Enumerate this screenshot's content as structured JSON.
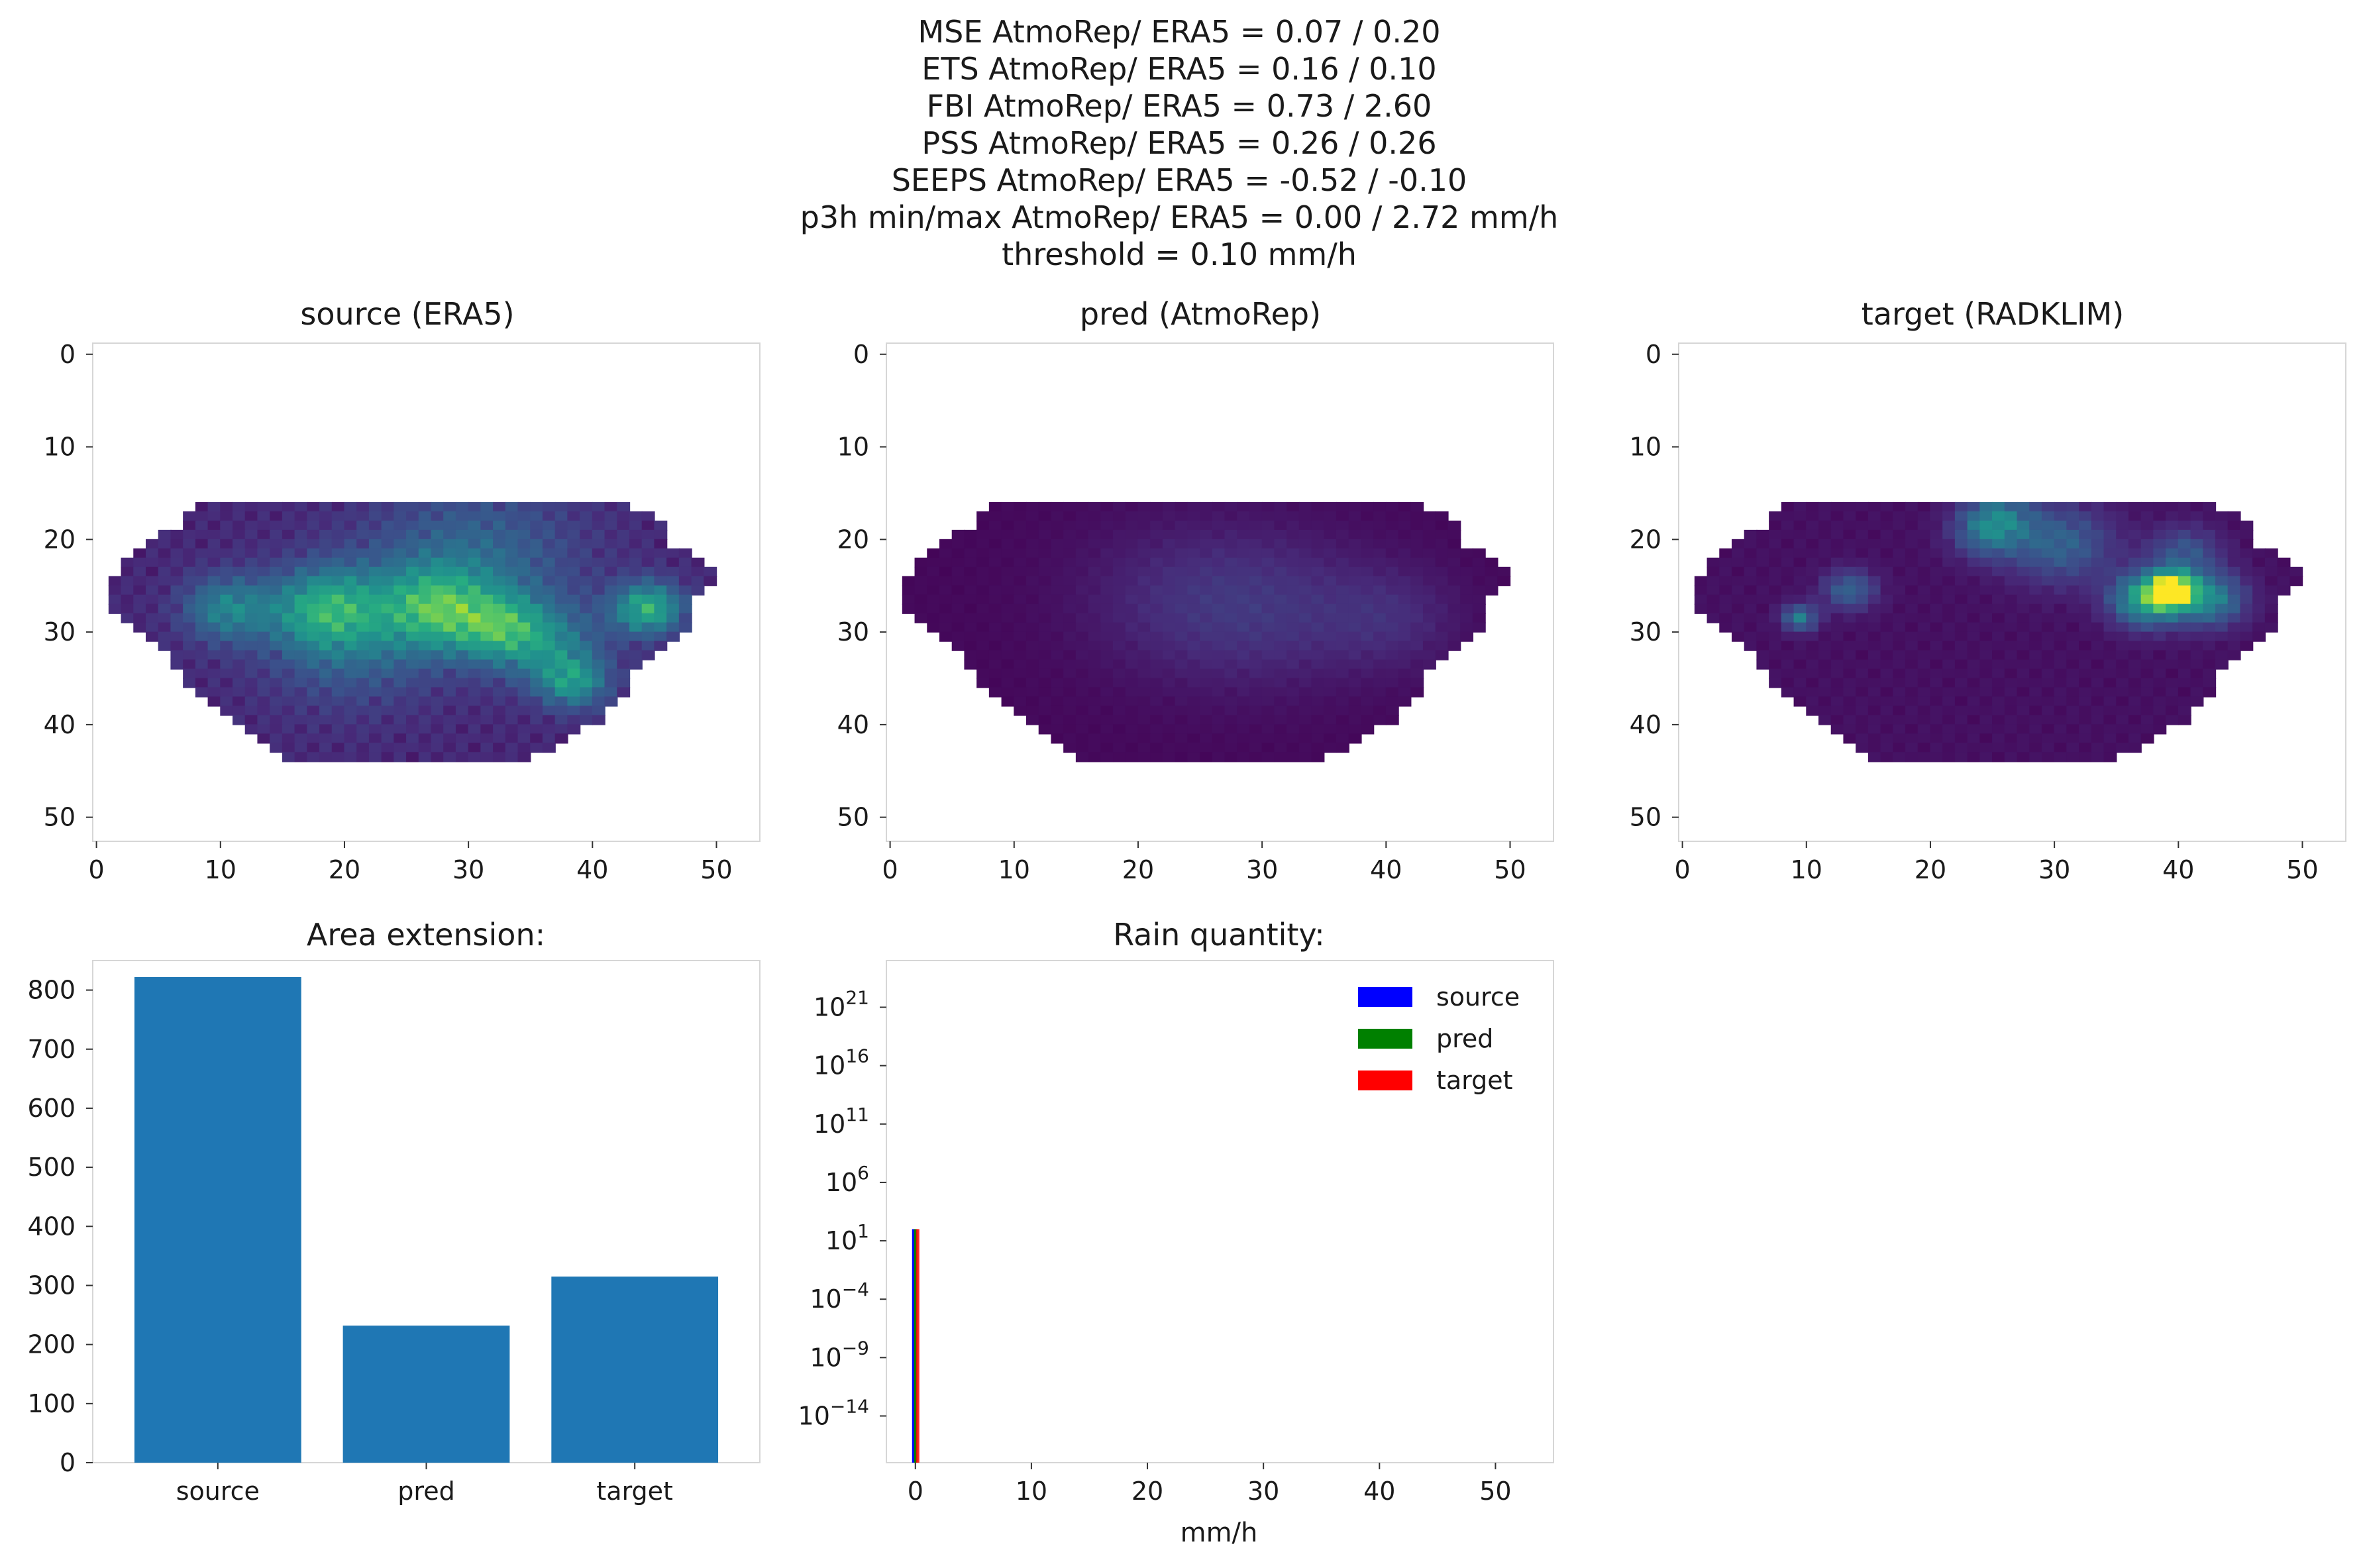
{
  "suptitle": [
    "MSE AtmoRep/ ERA5 = 0.07 / 0.20",
    "ETS AtmoRep/ ERA5 = 0.16 / 0.10",
    "FBI AtmoRep/ ERA5 = 0.73 / 2.60",
    "PSS AtmoRep/ ERA5 = 0.26 / 0.26",
    "SEEPS AtmoRep/ ERA5 = -0.52 / -0.10",
    "p3h min/max AtmoRep/ ERA5 = 0.00 / 2.72 mm/h",
    "threshold = 0.10 mm/h"
  ],
  "colors": {
    "bar": "#1f77b4",
    "viridis_low": "#440154",
    "viridis_high": "#fde725",
    "legend_source": "#0000ff",
    "legend_pred": "#008000",
    "legend_target": "#ff0000"
  },
  "chart_data": [
    {
      "type": "heatmap",
      "title": "source (ERA5)",
      "xlim": [
        0,
        53
      ],
      "ylim": [
        53,
        0
      ],
      "xticks": [
        "0",
        "10",
        "20",
        "30",
        "40",
        "50"
      ],
      "yticks": [
        "0",
        "10",
        "20",
        "30",
        "40",
        "50"
      ],
      "mask_rows": [
        [
          16,
          8,
          42
        ],
        [
          17,
          7,
          44
        ],
        [
          18,
          7,
          45
        ],
        [
          19,
          5,
          45
        ],
        [
          20,
          4,
          45
        ],
        [
          21,
          3,
          47
        ],
        [
          22,
          2,
          48
        ],
        [
          23,
          2,
          49
        ],
        [
          24,
          1,
          49
        ],
        [
          25,
          1,
          48
        ],
        [
          26,
          1,
          47
        ],
        [
          27,
          1,
          47
        ],
        [
          28,
          2,
          47
        ],
        [
          29,
          3,
          47
        ],
        [
          30,
          4,
          46
        ],
        [
          31,
          5,
          45
        ],
        [
          32,
          6,
          44
        ],
        [
          33,
          6,
          43
        ],
        [
          34,
          7,
          42
        ],
        [
          35,
          7,
          42
        ],
        [
          36,
          8,
          42
        ],
        [
          37,
          9,
          41
        ],
        [
          38,
          10,
          40
        ],
        [
          39,
          11,
          40
        ],
        [
          40,
          12,
          38
        ],
        [
          41,
          13,
          37
        ],
        [
          42,
          14,
          36
        ],
        [
          43,
          15,
          34
        ]
      ],
      "hotspots": [
        [
          27,
          10,
          0.35,
          2.5
        ],
        [
          27,
          18,
          0.4,
          3
        ],
        [
          27,
          27,
          0.45,
          3
        ],
        [
          29,
          32,
          0.4,
          2.5
        ],
        [
          27,
          44,
          0.55,
          2
        ],
        [
          31,
          36,
          0.3,
          3
        ],
        [
          35,
          38,
          0.4,
          2
        ],
        [
          22,
          30,
          0.25,
          6
        ],
        [
          30,
          20,
          0.25,
          5
        ]
      ],
      "base_level": 0.1
    },
    {
      "type": "heatmap",
      "title": "pred (AtmoRep)",
      "xlim": [
        0,
        53
      ],
      "ylim": [
        53,
        0
      ],
      "xticks": [
        "0",
        "10",
        "20",
        "30",
        "40",
        "50"
      ],
      "yticks": [
        "0",
        "10",
        "20",
        "30",
        "40",
        "50"
      ],
      "mask_rows": [
        [
          16,
          8,
          42
        ],
        [
          17,
          7,
          44
        ],
        [
          18,
          7,
          45
        ],
        [
          19,
          5,
          45
        ],
        [
          20,
          4,
          45
        ],
        [
          21,
          3,
          47
        ],
        [
          22,
          2,
          48
        ],
        [
          23,
          2,
          49
        ],
        [
          24,
          1,
          49
        ],
        [
          25,
          1,
          48
        ],
        [
          26,
          1,
          47
        ],
        [
          27,
          1,
          47
        ],
        [
          28,
          2,
          47
        ],
        [
          29,
          3,
          47
        ],
        [
          30,
          4,
          46
        ],
        [
          31,
          5,
          45
        ],
        [
          32,
          6,
          44
        ],
        [
          33,
          6,
          43
        ],
        [
          34,
          7,
          42
        ],
        [
          35,
          7,
          42
        ],
        [
          36,
          8,
          42
        ],
        [
          37,
          9,
          41
        ],
        [
          38,
          10,
          40
        ],
        [
          39,
          11,
          40
        ],
        [
          40,
          12,
          38
        ],
        [
          41,
          13,
          37
        ],
        [
          42,
          14,
          36
        ],
        [
          43,
          15,
          34
        ]
      ],
      "hotspots": [
        [
          27,
          30,
          0.12,
          6
        ],
        [
          28,
          40,
          0.1,
          4
        ],
        [
          26,
          22,
          0.08,
          6
        ]
      ],
      "base_level": 0.02
    },
    {
      "type": "heatmap",
      "title": "target (RADKLIM)",
      "xlim": [
        0,
        53
      ],
      "ylim": [
        53,
        0
      ],
      "xticks": [
        "0",
        "10",
        "20",
        "30",
        "40",
        "50"
      ],
      "yticks": [
        "0",
        "10",
        "20",
        "30",
        "40",
        "50"
      ],
      "mask_rows": [
        [
          16,
          8,
          42
        ],
        [
          17,
          7,
          44
        ],
        [
          18,
          7,
          45
        ],
        [
          19,
          5,
          45
        ],
        [
          20,
          4,
          45
        ],
        [
          21,
          3,
          47
        ],
        [
          22,
          2,
          48
        ],
        [
          23,
          2,
          49
        ],
        [
          24,
          1,
          49
        ],
        [
          25,
          1,
          48
        ],
        [
          26,
          1,
          47
        ],
        [
          27,
          1,
          47
        ],
        [
          28,
          2,
          47
        ],
        [
          29,
          3,
          47
        ],
        [
          30,
          4,
          46
        ],
        [
          31,
          5,
          45
        ],
        [
          32,
          6,
          44
        ],
        [
          33,
          6,
          43
        ],
        [
          34,
          7,
          42
        ],
        [
          35,
          7,
          42
        ],
        [
          36,
          8,
          42
        ],
        [
          37,
          9,
          41
        ],
        [
          38,
          10,
          40
        ],
        [
          39,
          11,
          40
        ],
        [
          40,
          12,
          38
        ],
        [
          41,
          13,
          37
        ],
        [
          42,
          14,
          36
        ],
        [
          43,
          15,
          34
        ]
      ],
      "hotspots": [
        [
          25,
          39,
          1.0,
          1.2
        ],
        [
          26,
          37,
          0.6,
          2
        ],
        [
          26,
          42,
          0.45,
          2
        ],
        [
          20,
          30,
          0.3,
          3
        ],
        [
          19,
          24,
          0.25,
          2
        ],
        [
          17,
          25,
          0.3,
          2
        ],
        [
          25,
          13,
          0.3,
          1.5
        ],
        [
          28,
          9,
          0.4,
          1
        ],
        [
          21,
          40,
          0.25,
          2
        ]
      ],
      "base_level": 0.04
    },
    {
      "type": "bar",
      "title": "Area extension:",
      "categories": [
        "source",
        "pred",
        "target"
      ],
      "values": [
        822,
        232,
        315
      ],
      "ylim": [
        0,
        850
      ],
      "yticks": [
        "0",
        "100",
        "200",
        "300",
        "400",
        "500",
        "600",
        "700",
        "800"
      ]
    },
    {
      "type": "bar",
      "title": "Rain quantity:",
      "xlabel": "mm/h",
      "log_scale": true,
      "xlim": [
        -2.5,
        55
      ],
      "ylim_exp": [
        -18,
        25
      ],
      "xticks": [
        "0",
        "10",
        "20",
        "30",
        "40",
        "50"
      ],
      "ytick_exps": [
        "21",
        "16",
        "11",
        "6",
        "1",
        "−4",
        "−9",
        "−14"
      ],
      "series": [
        {
          "name": "source",
          "x": 0,
          "value": 100
        },
        {
          "name": "pred",
          "x": 0,
          "value": 100
        },
        {
          "name": "target",
          "x": 0,
          "value": 100
        }
      ],
      "legend": [
        "source",
        "pred",
        "target"
      ],
      "legend_position": "top-right"
    }
  ]
}
